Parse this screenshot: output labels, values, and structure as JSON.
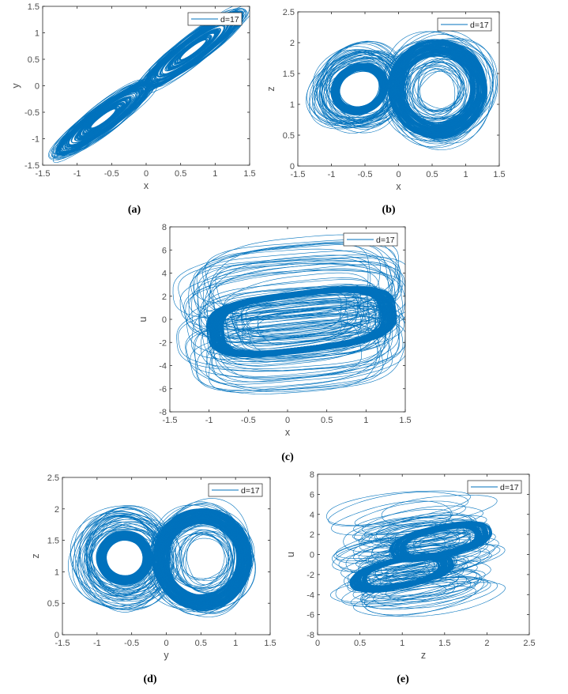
{
  "figure": {
    "line_color": "#0072BD",
    "axis_color": "#262626",
    "tick_label_color": "#4d4d4d"
  },
  "chart_data": [
    {
      "panel": "(a)",
      "type": "line",
      "title": "",
      "xlabel": "x",
      "ylabel": "y",
      "xlim": [
        -1.5,
        1.5
      ],
      "ylim": [
        -1.5,
        1.5
      ],
      "xticks": [
        "-1.5",
        "-1",
        "-0.5",
        "0",
        "0.5",
        "1",
        "1.5"
      ],
      "yticks": [
        "-1.5",
        "-1",
        "-0.5",
        "0",
        "0.5",
        "1",
        "1.5"
      ],
      "legend": [
        "d=17"
      ],
      "legend_placement": "top-right",
      "grid": false,
      "data_extent": {
        "x": [
          -1.35,
          1.45
        ],
        "y": [
          -1.4,
          1.45
        ]
      }
    },
    {
      "panel": "(b)",
      "type": "line",
      "title": "",
      "xlabel": "x",
      "ylabel": "z",
      "xlim": [
        -1.5,
        1.5
      ],
      "ylim": [
        0,
        2.5
      ],
      "xticks": [
        "-1.5",
        "-1",
        "-0.5",
        "0",
        "0.5",
        "1",
        "1.5"
      ],
      "yticks": [
        "0",
        "0.5",
        "1",
        "1.5",
        "2",
        "2.5"
      ],
      "legend": [
        "d=17"
      ],
      "legend_placement": "top-right",
      "grid": false,
      "data_extent": {
        "x": [
          -1.35,
          1.45
        ],
        "y": [
          0.15,
          2.15
        ]
      }
    },
    {
      "panel": "(c)",
      "type": "line",
      "title": "",
      "xlabel": "x",
      "ylabel": "u",
      "xlim": [
        -1.5,
        1.5
      ],
      "ylim": [
        -8,
        8
      ],
      "xticks": [
        "-1.5",
        "-1",
        "-0.5",
        "0",
        "0.5",
        "1",
        "1.5"
      ],
      "yticks": [
        "-8",
        "-6",
        "-4",
        "-2",
        "0",
        "2",
        "4",
        "6",
        "8"
      ],
      "legend": [
        "d=17"
      ],
      "legend_placement": "top-right",
      "grid": false,
      "data_extent": {
        "x": [
          -1.4,
          1.45
        ],
        "y": [
          -7.3,
          7.8
        ]
      }
    },
    {
      "panel": "(d)",
      "type": "line",
      "title": "",
      "xlabel": "y",
      "ylabel": "z",
      "xlim": [
        -1.5,
        1.5
      ],
      "ylim": [
        0,
        2.5
      ],
      "xticks": [
        "-1.5",
        "-1",
        "-0.5",
        "0",
        "0.5",
        "1",
        "1.5"
      ],
      "yticks": [
        "0",
        "0.5",
        "1",
        "1.5",
        "2",
        "2.5"
      ],
      "legend": [
        "d=17"
      ],
      "legend_placement": "top-right",
      "grid": false,
      "data_extent": {
        "x": [
          -1.4,
          1.45
        ],
        "y": [
          0.15,
          2.15
        ]
      }
    },
    {
      "panel": "(e)",
      "type": "line",
      "title": "",
      "xlabel": "z",
      "ylabel": "u",
      "xlim": [
        0,
        2.5
      ],
      "ylim": [
        -8,
        8
      ],
      "xticks": [
        "0",
        "0.5",
        "1",
        "1.5",
        "2",
        "2.5"
      ],
      "yticks": [
        "-8",
        "-6",
        "-4",
        "-2",
        "0",
        "2",
        "4",
        "6",
        "8"
      ],
      "legend": [
        "d=17"
      ],
      "legend_placement": "top-right",
      "grid": false,
      "data_extent": {
        "x": [
          0.15,
          2.15
        ],
        "y": [
          -7.2,
          7.8
        ]
      }
    }
  ]
}
